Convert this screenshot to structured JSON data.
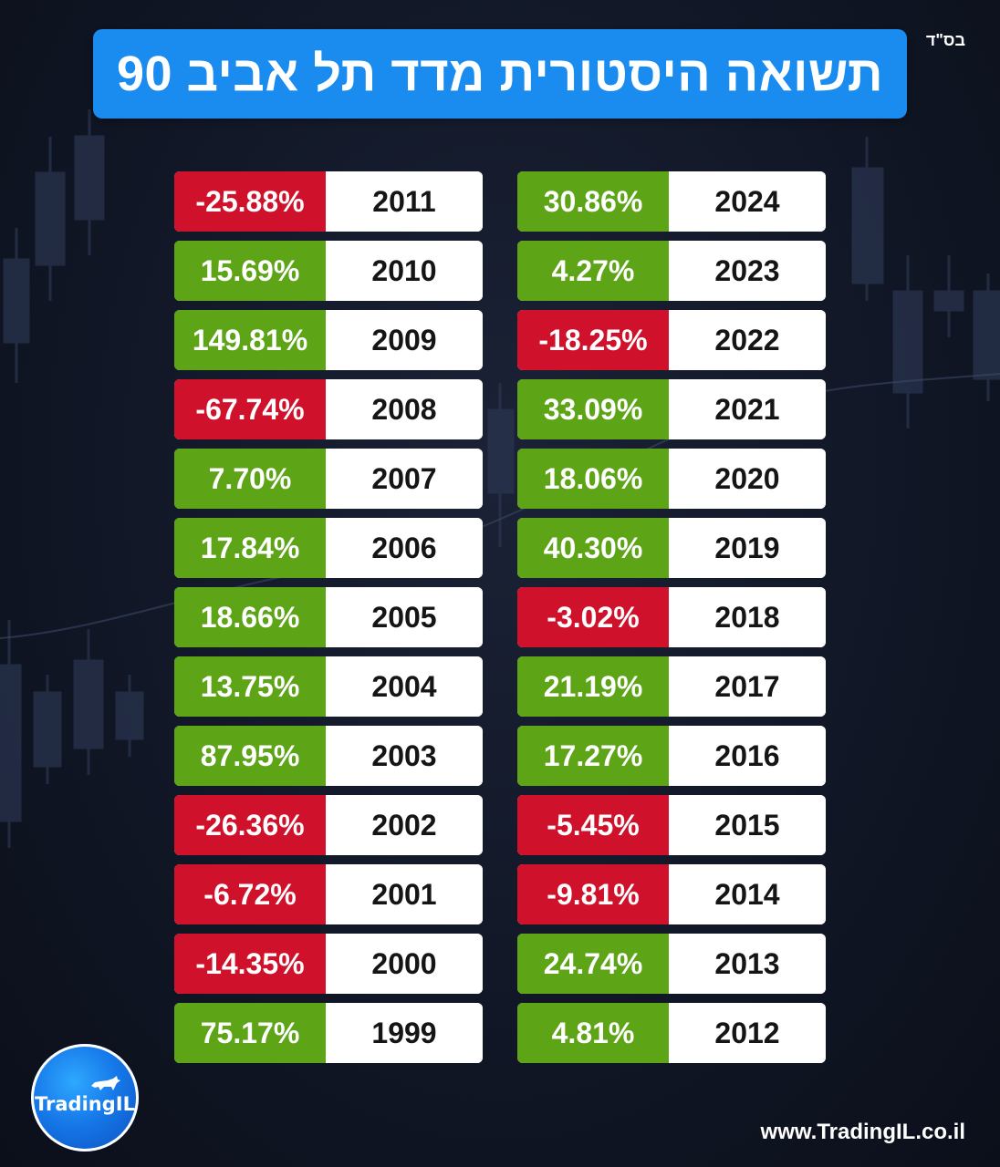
{
  "header": {
    "corner_text": "בס\"ד",
    "title": "תשואה היסטורית מדד תל אביב 90"
  },
  "colors": {
    "title_bg": "#1a8cf0",
    "positive": "#5da417",
    "negative": "#d0112b",
    "year_bg": "#ffffff"
  },
  "right_column": [
    {
      "year": "2024",
      "value": "30.86%",
      "positive": true
    },
    {
      "year": "2023",
      "value": "4.27%",
      "positive": true
    },
    {
      "year": "2022",
      "value": "-18.25%",
      "positive": false
    },
    {
      "year": "2021",
      "value": "33.09%",
      "positive": true
    },
    {
      "year": "2020",
      "value": "18.06%",
      "positive": true
    },
    {
      "year": "2019",
      "value": "40.30%",
      "positive": true
    },
    {
      "year": "2018",
      "value": "-3.02%",
      "positive": false
    },
    {
      "year": "2017",
      "value": "21.19%",
      "positive": true
    },
    {
      "year": "2016",
      "value": "17.27%",
      "positive": true
    },
    {
      "year": "2015",
      "value": "-5.45%",
      "positive": false
    },
    {
      "year": "2014",
      "value": "-9.81%",
      "positive": false
    },
    {
      "year": "2013",
      "value": "24.74%",
      "positive": true
    },
    {
      "year": "2012",
      "value": "4.81%",
      "positive": true
    }
  ],
  "left_column": [
    {
      "year": "2011",
      "value": "-25.88%",
      "positive": false
    },
    {
      "year": "2010",
      "value": "15.69%",
      "positive": true
    },
    {
      "year": "2009",
      "value": "149.81%",
      "positive": true
    },
    {
      "year": "2008",
      "value": "-67.74%",
      "positive": false
    },
    {
      "year": "2007",
      "value": "7.70%",
      "positive": true
    },
    {
      "year": "2006",
      "value": "17.84%",
      "positive": true
    },
    {
      "year": "2005",
      "value": "18.66%",
      "positive": true
    },
    {
      "year": "2004",
      "value": "13.75%",
      "positive": true
    },
    {
      "year": "2003",
      "value": "87.95%",
      "positive": true
    },
    {
      "year": "2002",
      "value": "-26.36%",
      "positive": false
    },
    {
      "year": "2001",
      "value": "-6.72%",
      "positive": false
    },
    {
      "year": "2000",
      "value": "-14.35%",
      "positive": false
    },
    {
      "year": "1999",
      "value": "75.17%",
      "positive": true
    }
  ],
  "footer": {
    "logo_text": "TradingIL",
    "logo_icon": "bull-icon",
    "website": "www.TradingIL.co.il"
  }
}
